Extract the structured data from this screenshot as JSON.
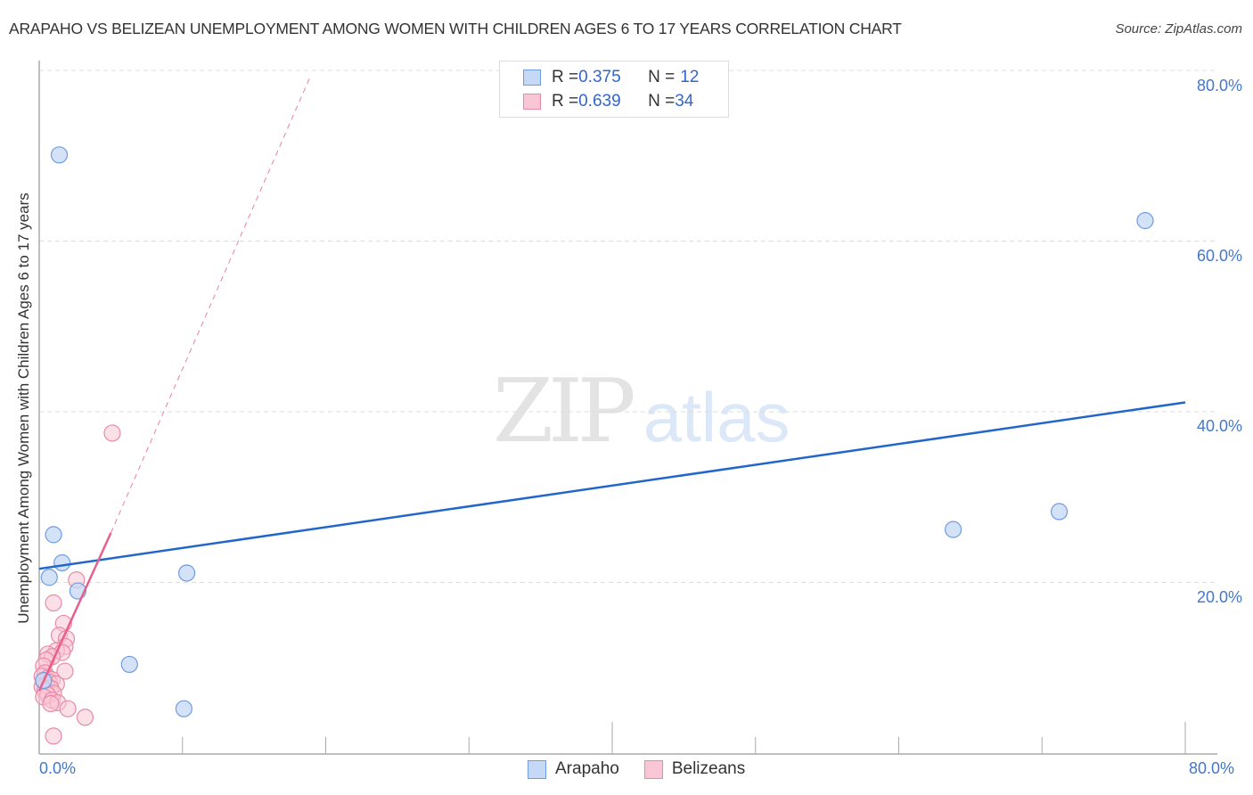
{
  "title": "ARAPAHO VS BELIZEAN UNEMPLOYMENT AMONG WOMEN WITH CHILDREN AGES 6 TO 17 YEARS CORRELATION CHART",
  "source": "Source: ZipAtlas.com",
  "watermark": {
    "zip": "ZIP",
    "atlas": "atlas"
  },
  "legend": {
    "rows": [
      {
        "series": "Arapaho",
        "r_label": "R = ",
        "r_value": "0.375",
        "n_label": "N = ",
        "n_value": "12"
      },
      {
        "series": "Belizeans",
        "r_label": "R = ",
        "r_value": "0.639",
        "n_label": "N = ",
        "n_value": "34"
      }
    ]
  },
  "bottom_legend": [
    "Arapaho",
    "Belizeans"
  ],
  "colors": {
    "arapaho_fill": "#c5d8f5",
    "arapaho_stroke": "#6f9be0",
    "arapaho_line": "#2266cc",
    "belizean_fill": "#f9c6d6",
    "belizean_stroke": "#e88aa8",
    "belizean_line": "#e8608a",
    "tick_text": "#4477cc",
    "grid": "#dddddd"
  },
  "chart_data": {
    "type": "scatter",
    "title": "ARAPAHO VS BELIZEAN UNEMPLOYMENT AMONG WOMEN WITH CHILDREN AGES 6 TO 17 YEARS CORRELATION CHART",
    "xlabel": "",
    "ylabel": "Unemployment Among Women with Children Ages 6 to 17 years",
    "xlim": [
      0,
      80
    ],
    "ylim": [
      0,
      80
    ],
    "x_tick_labels": [
      "0.0%",
      "80.0%"
    ],
    "y_tick_labels": [
      "20.0%",
      "40.0%",
      "60.0%",
      "80.0%"
    ],
    "y_ticks": [
      20,
      40,
      60,
      80
    ],
    "grid": {
      "horizontal_dashed": true
    },
    "legend_position": "top-center",
    "series": [
      {
        "name": "Arapaho",
        "R": 0.375,
        "N": 12,
        "points": [
          [
            1.4,
            70.1
          ],
          [
            77.2,
            62.4
          ],
          [
            1.0,
            25.6
          ],
          [
            1.6,
            22.3
          ],
          [
            0.7,
            20.6
          ],
          [
            2.7,
            19.0
          ],
          [
            10.3,
            21.1
          ],
          [
            6.3,
            10.4
          ],
          [
            10.1,
            5.2
          ],
          [
            63.8,
            26.2
          ],
          [
            71.2,
            28.3
          ],
          [
            0.3,
            8.5
          ]
        ],
        "trend": {
          "x0": 0,
          "y0": 21.6,
          "x1": 80,
          "y1": 41.1,
          "style": "solid"
        }
      },
      {
        "name": "Belizeans",
        "R": 0.639,
        "N": 34,
        "points": [
          [
            5.1,
            37.5
          ],
          [
            2.6,
            20.3
          ],
          [
            1.0,
            17.6
          ],
          [
            1.7,
            15.2
          ],
          [
            1.4,
            13.8
          ],
          [
            1.9,
            13.4
          ],
          [
            1.8,
            12.5
          ],
          [
            1.2,
            12.0
          ],
          [
            1.6,
            11.8
          ],
          [
            0.6,
            11.6
          ],
          [
            0.9,
            11.3
          ],
          [
            0.5,
            10.9
          ],
          [
            0.3,
            10.2
          ],
          [
            1.8,
            9.6
          ],
          [
            0.4,
            9.4
          ],
          [
            0.2,
            9.0
          ],
          [
            0.6,
            8.8
          ],
          [
            0.9,
            8.6
          ],
          [
            0.3,
            8.4
          ],
          [
            0.7,
            8.3
          ],
          [
            1.2,
            8.1
          ],
          [
            0.5,
            8.0
          ],
          [
            0.2,
            7.8
          ],
          [
            0.8,
            7.6
          ],
          [
            0.4,
            7.3
          ],
          [
            1.0,
            7.0
          ],
          [
            0.6,
            6.8
          ],
          [
            0.3,
            6.6
          ],
          [
            0.9,
            6.2
          ],
          [
            1.3,
            5.9
          ],
          [
            0.8,
            5.8
          ],
          [
            2.0,
            5.2
          ],
          [
            3.2,
            4.2
          ],
          [
            1.0,
            2.0
          ]
        ],
        "trend": {
          "x0": 0,
          "y0": 7.3,
          "x1": 5.0,
          "y1": 25.8,
          "style": "solid",
          "extended_dashed_to": [
            18.9,
            79.2
          ]
        }
      }
    ]
  }
}
